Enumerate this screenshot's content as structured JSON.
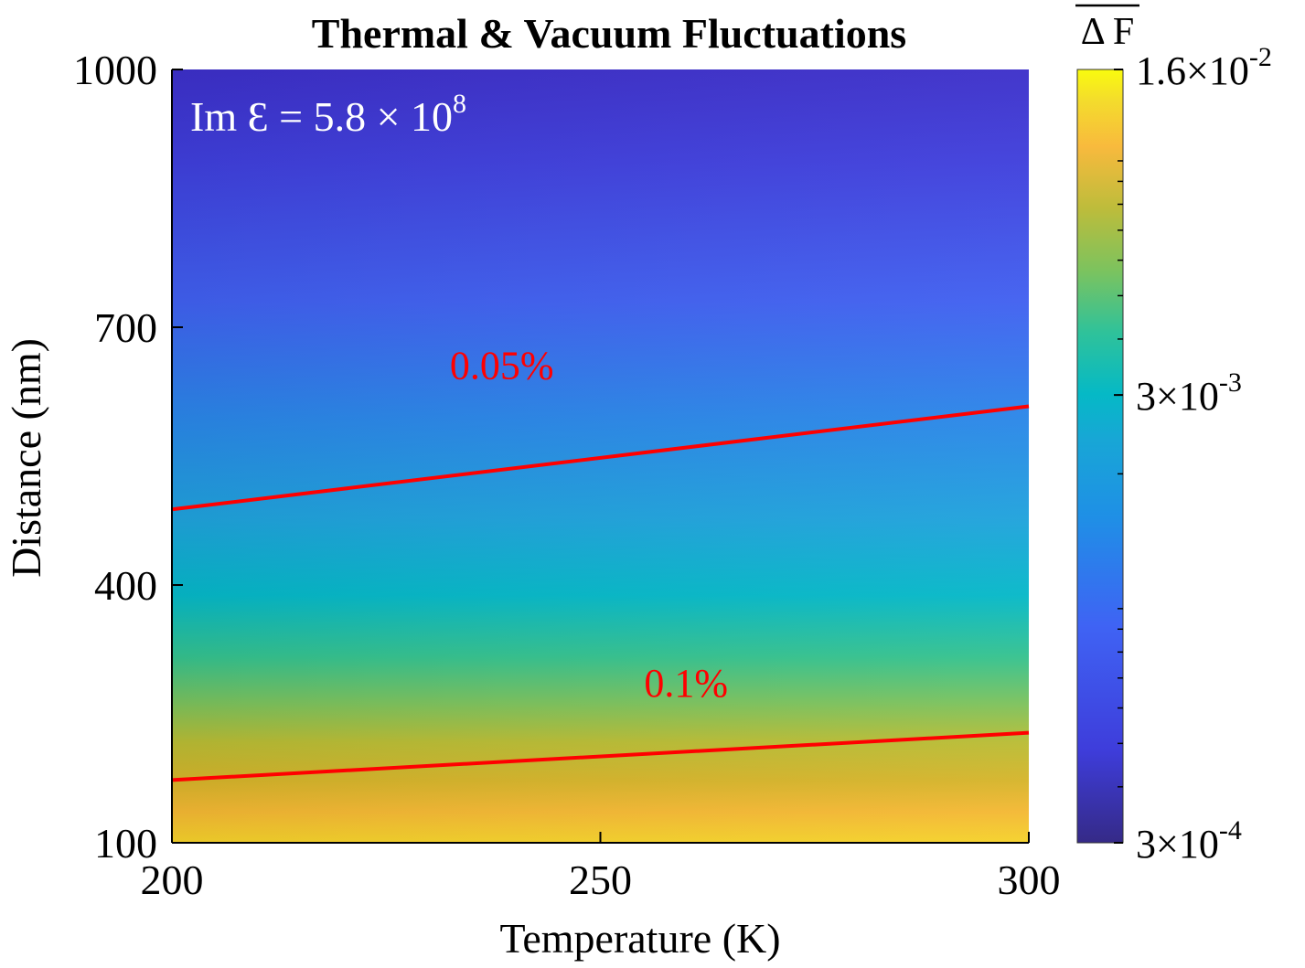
{
  "chart_data": {
    "type": "heatmap",
    "title": "Thermal & Vacuum Fluctuations",
    "xlabel": "Temperature (K)",
    "ylabel": "Distance (nm)",
    "xlim": [
      200,
      300
    ],
    "ylim": [
      100,
      1000
    ],
    "x_ticks": [
      {
        "value": 200,
        "label": "200"
      },
      {
        "value": 250,
        "label": "250"
      },
      {
        "value": 300,
        "label": "300"
      }
    ],
    "y_ticks": [
      {
        "value": 100,
        "label": "100"
      },
      {
        "value": 400,
        "label": "400"
      },
      {
        "value": 700,
        "label": "700"
      },
      {
        "value": 1000,
        "label": "1000"
      }
    ],
    "annotation": {
      "prefix": "Im Ɛ = 5.8 × 10",
      "exponent": "8",
      "color": "#ffffff"
    },
    "colorbar": {
      "label": "Δ F",
      "label_overline": true,
      "scale": "log",
      "min": 0.0003,
      "max": 0.016,
      "ticks": [
        {
          "value": 0.016,
          "mantissa": "1.6×10",
          "exponent": "-2"
        },
        {
          "value": 0.003,
          "mantissa": "3×10",
          "exponent": "-3"
        },
        {
          "value": 0.0003,
          "mantissa": "3×10",
          "exponent": "-4"
        }
      ],
      "colormap": "parula"
    },
    "contours": [
      {
        "label": "0.05%",
        "color": "#ff0000",
        "points": [
          [
            200,
            488
          ],
          [
            300,
            608
          ]
        ],
        "label_at": [
          238.5,
          640
        ]
      },
      {
        "label": "0.1%",
        "color": "#ff0000",
        "points": [
          [
            200,
            173
          ],
          [
            300,
            228
          ]
        ],
        "label_at": [
          260,
          270
        ]
      }
    ],
    "grid": false
  }
}
